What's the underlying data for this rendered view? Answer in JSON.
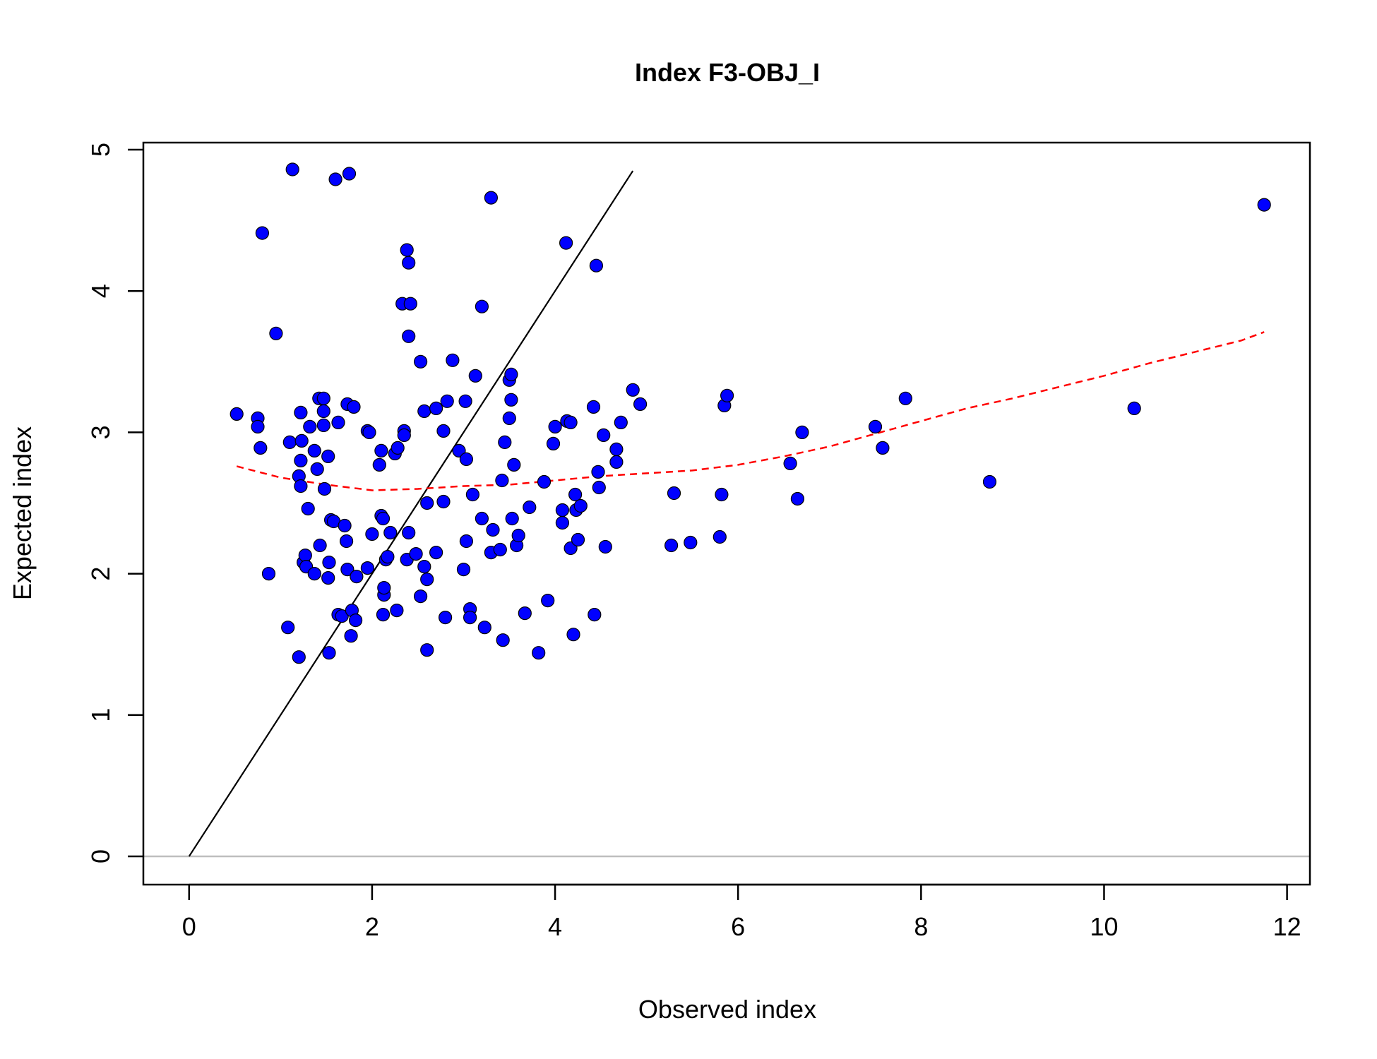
{
  "chart_data": {
    "type": "scatter",
    "title": "Index F3-OBJ_I",
    "xlabel": "Observed index",
    "ylabel": "Expected index",
    "xlim": [
      -0.5,
      12.25
    ],
    "ylim": [
      -0.2,
      5.05
    ],
    "xticks": [
      0,
      2,
      4,
      6,
      8,
      10,
      12
    ],
    "yticks": [
      0,
      1,
      2,
      3,
      4,
      5
    ],
    "grid": false,
    "legend": "none",
    "point_fill": "#0000ff",
    "point_edge": "#000000",
    "smooth_color": "#ff0000",
    "identity_color": "#000000",
    "zero_line_color": "#bebebe",
    "points": [
      [
        0.52,
        3.13
      ],
      [
        0.75,
        3.1
      ],
      [
        0.75,
        3.04
      ],
      [
        0.78,
        2.89
      ],
      [
        0.8,
        4.41
      ],
      [
        0.87,
        2.0
      ],
      [
        0.95,
        3.7
      ],
      [
        1.08,
        1.62
      ],
      [
        1.1,
        2.93
      ],
      [
        1.13,
        4.86
      ],
      [
        1.2,
        1.41
      ],
      [
        1.2,
        2.69
      ],
      [
        1.22,
        2.62
      ],
      [
        1.22,
        3.14
      ],
      [
        1.22,
        2.8
      ],
      [
        1.23,
        2.94
      ],
      [
        1.25,
        2.08
      ],
      [
        1.27,
        2.13
      ],
      [
        1.28,
        2.05
      ],
      [
        1.3,
        2.46
      ],
      [
        1.32,
        3.04
      ],
      [
        1.37,
        2.0
      ],
      [
        1.37,
        2.87
      ],
      [
        1.4,
        2.74
      ],
      [
        1.42,
        3.24
      ],
      [
        1.43,
        2.2
      ],
      [
        1.47,
        3.24
      ],
      [
        1.47,
        3.15
      ],
      [
        1.47,
        3.05
      ],
      [
        1.48,
        2.6
      ],
      [
        1.52,
        2.83
      ],
      [
        1.52,
        1.97
      ],
      [
        1.53,
        1.44
      ],
      [
        1.53,
        2.08
      ],
      [
        1.55,
        2.38
      ],
      [
        1.58,
        2.37
      ],
      [
        1.6,
        4.79
      ],
      [
        1.63,
        1.71
      ],
      [
        1.63,
        3.07
      ],
      [
        1.67,
        1.7
      ],
      [
        1.7,
        2.34
      ],
      [
        1.72,
        2.23
      ],
      [
        1.73,
        2.03
      ],
      [
        1.73,
        3.2
      ],
      [
        1.75,
        4.83
      ],
      [
        1.77,
        1.56
      ],
      [
        1.78,
        1.74
      ],
      [
        1.8,
        3.18
      ],
      [
        1.82,
        1.67
      ],
      [
        1.83,
        1.98
      ],
      [
        1.95,
        2.04
      ],
      [
        1.95,
        3.01
      ],
      [
        1.97,
        3.0
      ],
      [
        2.0,
        2.28
      ],
      [
        2.08,
        2.77
      ],
      [
        2.1,
        2.87
      ],
      [
        2.1,
        2.41
      ],
      [
        2.12,
        1.71
      ],
      [
        2.12,
        2.39
      ],
      [
        2.13,
        1.85
      ],
      [
        2.13,
        1.9
      ],
      [
        2.15,
        2.1
      ],
      [
        2.17,
        2.12
      ],
      [
        2.2,
        2.29
      ],
      [
        2.25,
        2.85
      ],
      [
        2.27,
        1.74
      ],
      [
        2.28,
        2.89
      ],
      [
        2.33,
        3.91
      ],
      [
        2.35,
        3.01
      ],
      [
        2.35,
        2.98
      ],
      [
        2.38,
        2.1
      ],
      [
        2.38,
        4.29
      ],
      [
        2.4,
        4.2
      ],
      [
        2.4,
        3.68
      ],
      [
        2.4,
        2.29
      ],
      [
        2.42,
        3.91
      ],
      [
        2.48,
        2.14
      ],
      [
        2.53,
        3.5
      ],
      [
        2.53,
        1.84
      ],
      [
        2.57,
        3.15
      ],
      [
        2.57,
        2.05
      ],
      [
        2.6,
        1.96
      ],
      [
        2.6,
        2.5
      ],
      [
        2.6,
        1.46
      ],
      [
        2.7,
        3.17
      ],
      [
        2.7,
        2.15
      ],
      [
        2.78,
        3.01
      ],
      [
        2.78,
        2.51
      ],
      [
        2.8,
        1.69
      ],
      [
        2.82,
        3.22
      ],
      [
        2.88,
        3.51
      ],
      [
        2.95,
        2.87
      ],
      [
        3.0,
        2.03
      ],
      [
        3.02,
        3.22
      ],
      [
        3.03,
        2.81
      ],
      [
        3.03,
        2.23
      ],
      [
        3.07,
        1.75
      ],
      [
        3.07,
        1.69
      ],
      [
        3.1,
        2.56
      ],
      [
        3.13,
        3.4
      ],
      [
        3.2,
        3.89
      ],
      [
        3.2,
        2.39
      ],
      [
        3.23,
        1.62
      ],
      [
        3.3,
        2.15
      ],
      [
        3.3,
        4.66
      ],
      [
        3.32,
        2.31
      ],
      [
        3.4,
        2.17
      ],
      [
        3.42,
        2.66
      ],
      [
        3.43,
        1.53
      ],
      [
        3.45,
        2.93
      ],
      [
        3.5,
        3.1
      ],
      [
        3.5,
        3.37
      ],
      [
        3.52,
        3.41
      ],
      [
        3.52,
        3.23
      ],
      [
        3.53,
        2.39
      ],
      [
        3.55,
        2.77
      ],
      [
        3.58,
        2.2
      ],
      [
        3.6,
        2.27
      ],
      [
        3.67,
        1.72
      ],
      [
        3.72,
        2.47
      ],
      [
        3.82,
        1.44
      ],
      [
        3.88,
        2.65
      ],
      [
        3.92,
        1.81
      ],
      [
        3.98,
        2.92
      ],
      [
        4.0,
        3.04
      ],
      [
        4.08,
        2.36
      ],
      [
        4.08,
        2.45
      ],
      [
        4.12,
        4.34
      ],
      [
        4.13,
        3.08
      ],
      [
        4.17,
        3.07
      ],
      [
        4.17,
        2.18
      ],
      [
        4.2,
        1.57
      ],
      [
        4.22,
        2.56
      ],
      [
        4.23,
        2.45
      ],
      [
        4.25,
        2.24
      ],
      [
        4.28,
        2.48
      ],
      [
        4.42,
        3.18
      ],
      [
        4.43,
        1.71
      ],
      [
        4.45,
        4.18
      ],
      [
        4.47,
        2.72
      ],
      [
        4.48,
        2.61
      ],
      [
        4.53,
        2.98
      ],
      [
        4.55,
        2.19
      ],
      [
        4.67,
        2.79
      ],
      [
        4.67,
        2.88
      ],
      [
        4.72,
        3.07
      ],
      [
        4.85,
        3.3
      ],
      [
        4.93,
        3.2
      ],
      [
        5.27,
        2.2
      ],
      [
        5.3,
        2.57
      ],
      [
        5.48,
        2.22
      ],
      [
        5.8,
        2.26
      ],
      [
        5.82,
        2.56
      ],
      [
        5.85,
        3.19
      ],
      [
        5.88,
        3.26
      ],
      [
        6.57,
        2.78
      ],
      [
        6.65,
        2.53
      ],
      [
        6.7,
        3.0
      ],
      [
        7.5,
        3.04
      ],
      [
        7.58,
        2.89
      ],
      [
        7.83,
        3.24
      ],
      [
        8.75,
        2.65
      ],
      [
        10.33,
        3.17
      ],
      [
        11.75,
        4.61
      ]
    ],
    "smooth_line": [
      [
        0.52,
        2.76
      ],
      [
        1.0,
        2.68
      ],
      [
        1.5,
        2.63
      ],
      [
        2.0,
        2.59
      ],
      [
        2.5,
        2.6
      ],
      [
        3.0,
        2.62
      ],
      [
        3.5,
        2.63
      ],
      [
        4.0,
        2.66
      ],
      [
        4.5,
        2.69
      ],
      [
        5.0,
        2.71
      ],
      [
        5.5,
        2.73
      ],
      [
        6.0,
        2.77
      ],
      [
        6.5,
        2.83
      ],
      [
        7.0,
        2.9
      ],
      [
        7.5,
        2.99
      ],
      [
        8.0,
        3.08
      ],
      [
        8.5,
        3.17
      ],
      [
        9.0,
        3.24
      ],
      [
        9.5,
        3.32
      ],
      [
        10.0,
        3.4
      ],
      [
        10.5,
        3.49
      ],
      [
        11.0,
        3.57
      ],
      [
        11.5,
        3.65
      ],
      [
        11.75,
        3.71
      ]
    ],
    "identity_line": [
      [
        0,
        0
      ],
      [
        4.85,
        4.85
      ]
    ],
    "zero_line_y": 0
  }
}
